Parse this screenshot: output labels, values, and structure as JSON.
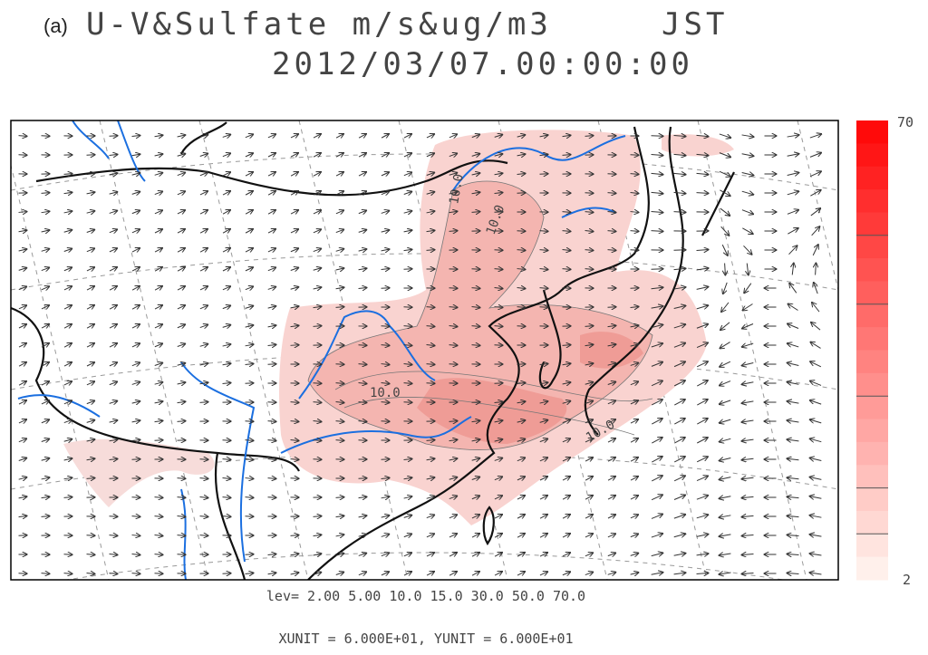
{
  "header": {
    "panel": "(a)",
    "title": "U-V&Sulfate m/s&ug/m3",
    "timezone": "JST",
    "datetime": "2012/03/07.00:00:00"
  },
  "colorbar": {
    "top_label": "70",
    "bottom_label": "2"
  },
  "contour_labels": [
    "10.0",
    "10.0",
    "10.0",
    "10.0"
  ],
  "footer": {
    "levels": "lev= 2.00 5.00 10.0 15.0 30.0 50.0 70.0",
    "units": "XUNIT = 6.000E+01, YUNIT = 6.000E+01"
  }
}
